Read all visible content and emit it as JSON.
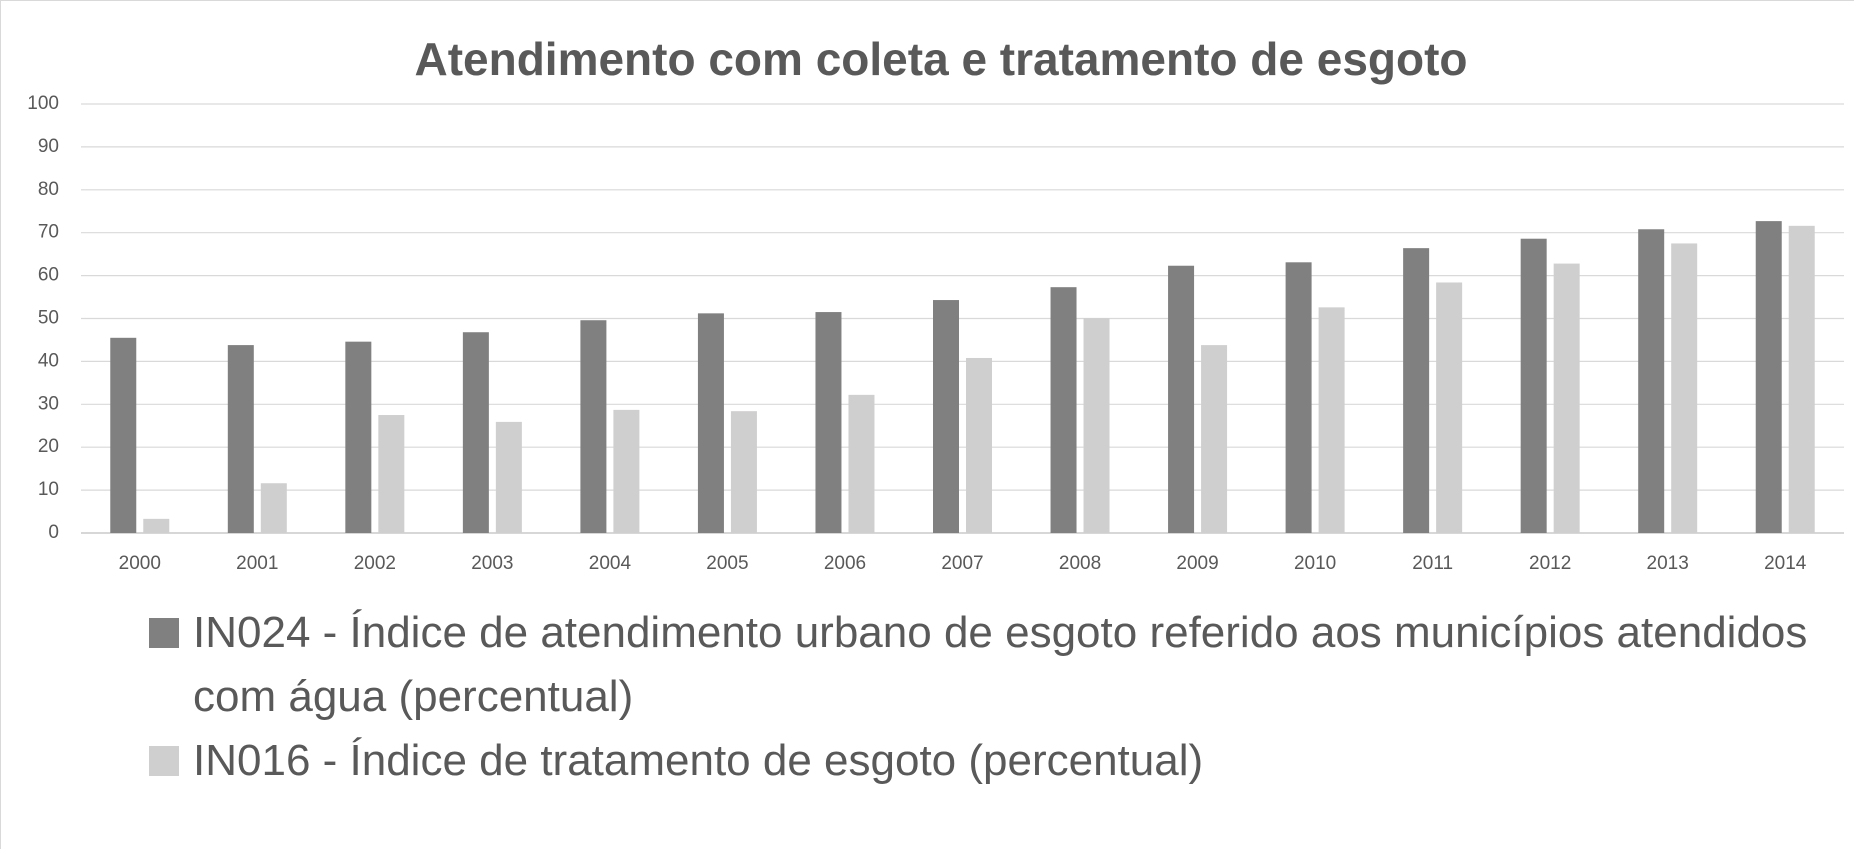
{
  "chart_data": {
    "type": "bar",
    "title": "Atendimento com coleta e tratamento de esgoto",
    "categories": [
      "2000",
      "2001",
      "2002",
      "2003",
      "2004",
      "2005",
      "2006",
      "2007",
      "2008",
      "2009",
      "2010",
      "2011",
      "2012",
      "2013",
      "2014"
    ],
    "series": [
      {
        "name": "IN024 - Índice de atendimento urbano de esgoto referido aos municípios atendidos com água (percentual)",
        "color": "#808080",
        "values": [
          45.5,
          43.8,
          44.6,
          46.8,
          49.6,
          51.2,
          51.5,
          54.3,
          57.3,
          62.3,
          63.1,
          66.4,
          68.6,
          70.8,
          72.7
        ]
      },
      {
        "name": "IN016 - Índice de tratamento de esgoto (percentual)",
        "color": "#d0cfcf",
        "values": [
          3.3,
          11.6,
          27.5,
          25.9,
          28.7,
          28.4,
          32.2,
          40.8,
          50.1,
          43.8,
          52.6,
          58.4,
          62.8,
          67.5,
          71.6
        ]
      }
    ],
    "ylim": [
      0,
      100
    ],
    "yticks": [
      0,
      10,
      20,
      30,
      40,
      50,
      60,
      70,
      80,
      90,
      100
    ],
    "grid": true
  }
}
